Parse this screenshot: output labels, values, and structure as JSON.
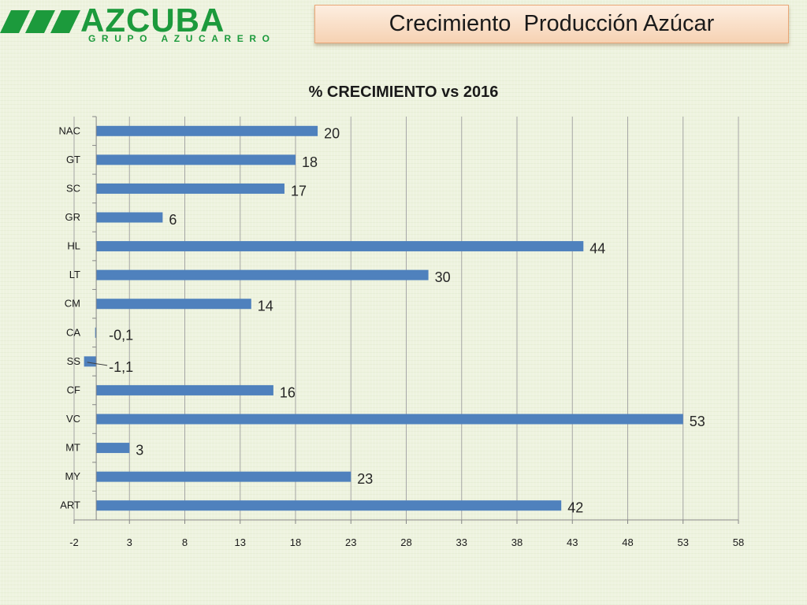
{
  "brand": {
    "logo_text": "AZCUBA",
    "logo_subtitle": "GRUPO AZUCARERO",
    "color": "#1c9a3c"
  },
  "header": {
    "title": "Crecimiento  Producción Azúcar"
  },
  "chart_data": {
    "type": "bar",
    "orientation": "horizontal",
    "title": "% CRECIMIENTO vs 2016",
    "xlabel": "",
    "ylabel": "",
    "categories": [
      "NAC",
      "GT",
      "SC",
      "GR",
      "HL",
      "LT",
      "CM",
      "CA",
      "SS",
      "CF",
      "VC",
      "MT",
      "MY",
      "ART"
    ],
    "values": [
      20,
      18,
      17,
      6,
      44,
      30,
      14,
      -0.1,
      -1.1,
      16,
      53,
      3,
      23,
      42
    ],
    "value_labels": [
      "20",
      "18",
      "17",
      "6",
      "44",
      "30",
      "14",
      "-0,1",
      "-1,1",
      "16",
      "53",
      "3",
      "23",
      "42"
    ],
    "xlim": [
      -2,
      58
    ],
    "x_ticks": [
      -2,
      3,
      8,
      13,
      18,
      23,
      28,
      33,
      38,
      43,
      48,
      53,
      58
    ],
    "grid": true,
    "legend": "none",
    "bar_color": "#4f81bd"
  }
}
